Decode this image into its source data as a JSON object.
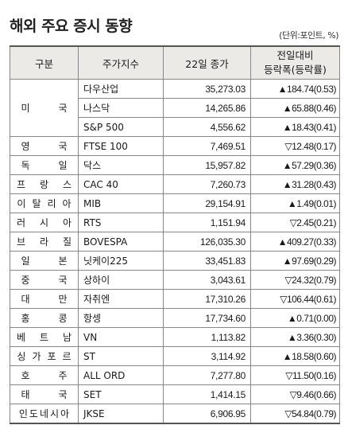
{
  "title": "해외 주요 증시 동향",
  "unit_note": "(단위:포인트, %)",
  "headers": {
    "region": "구분",
    "index": "주가지수",
    "close": "22일 종가",
    "change_line1": "전일대비",
    "change_line2": "등락폭(등락률)"
  },
  "rows": [
    {
      "region": "미국",
      "index": "다우산업",
      "close": "35,273.03",
      "change": "▲184.74(0.53)"
    },
    {
      "region": "",
      "index": "나스닥",
      "close": "14,265.86",
      "change": "▲65.88(0.46)"
    },
    {
      "region": "",
      "index": "S&P 500",
      "close": "4,556.62",
      "change": "▲18.43(0.41)"
    },
    {
      "region": "영국",
      "index": "FTSE 100",
      "close": "7,469.51",
      "change": "▽12.48(0.17)"
    },
    {
      "region": "독일",
      "index": "닥스",
      "close": "15,957.82",
      "change": "▲57.29(0.36)"
    },
    {
      "region": "프랑스",
      "index": "CAC 40",
      "close": "7,260.73",
      "change": "▲31.28(0.43)"
    },
    {
      "region": "이탈리아",
      "index": "MIB",
      "close": "29,154.91",
      "change": "▲1.49(0.01)"
    },
    {
      "region": "러시아",
      "index": "RTS",
      "close": "1,151.94",
      "change": "▽2.45(0.21)"
    },
    {
      "region": "브라질",
      "index": "BOVESPA",
      "close": "126,035.30",
      "change": "▲409.27(0.33)"
    },
    {
      "region": "일본",
      "index": "닛케이225",
      "close": "33,451.83",
      "change": "▲97.69(0.29)"
    },
    {
      "region": "중국",
      "index": "상하이",
      "close": "3,043.61",
      "change": "▽24.32(0.79)"
    },
    {
      "region": "대만",
      "index": "자취엔",
      "close": "17,310.26",
      "change": "▽106.44(0.61)"
    },
    {
      "region": "홍콩",
      "index": "항셍",
      "close": "17,734.60",
      "change": "▲0.71(0.00)"
    },
    {
      "region": "베트남",
      "index": "VN",
      "close": "1,113.82",
      "change": "▲3.36(0.30)"
    },
    {
      "region": "싱가포르",
      "index": "ST",
      "close": "3,114.92",
      "change": "▲18.58(0.60)"
    },
    {
      "region": "호주",
      "index": "ALL ORD",
      "close": "7,277.80",
      "change": "▽11.50(0.16)"
    },
    {
      "region": "태국",
      "index": "SET",
      "close": "1,414.15",
      "change": "▽9.46(0.66)"
    },
    {
      "region": "인도네시아",
      "index": "JKSE",
      "close": "6,906.95",
      "change": "▽54.84(0.79)"
    }
  ]
}
